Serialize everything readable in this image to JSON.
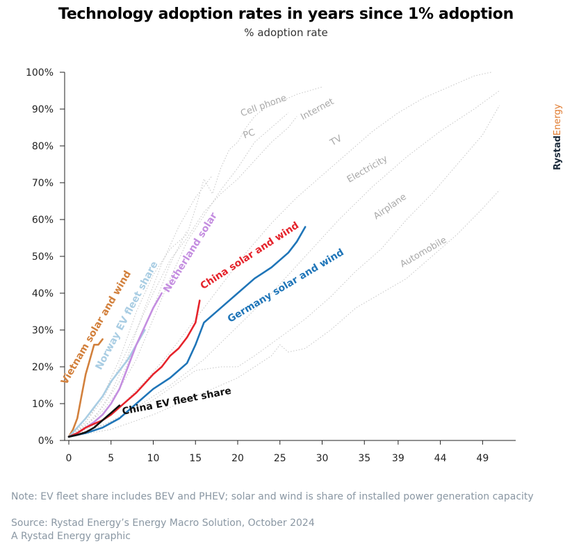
{
  "header": {
    "title": "Technology adoption rates in years since 1% adoption",
    "subtitle": "% adoption rate"
  },
  "brand": {
    "part1": "Rystad",
    "part2": "Energy"
  },
  "footer": {
    "note": "Note: EV fleet share includes BEV and PHEV; solar and wind is share of installed power generation capacity",
    "source": "Source: Rystad Energy’s Energy Macro Solution, October 2024",
    "credit": "A Rystad Energy graphic"
  },
  "colors": {
    "reference": "#c4c4c4",
    "vietnam": "#d2803c",
    "norway": "#a9cde3",
    "netherland": "#c48ee0",
    "china_solar": "#e5232b",
    "germany": "#1f75b8",
    "china_ev": "#111111"
  },
  "chart_data": {
    "type": "line",
    "title": "Technology adoption rates in years since 1% adoption",
    "subtitle": "% adoption rate",
    "xlim": [
      0,
      52
    ],
    "ylim": [
      0,
      100
    ],
    "x_ticks": [
      0,
      5,
      10,
      15,
      20,
      25,
      30,
      35,
      39,
      44,
      49
    ],
    "x_tick_labels": [
      "0",
      "5",
      "10",
      "15",
      "20",
      "25",
      "30",
      "35",
      "39",
      "44",
      "49"
    ],
    "y_ticks": [
      0,
      10,
      20,
      30,
      40,
      50,
      60,
      70,
      80,
      90,
      100
    ],
    "y_tick_labels": [
      "0%",
      "10%",
      "20%",
      "30%",
      "40%",
      "50%",
      "60%",
      "70%",
      "80%",
      "90%",
      "100%"
    ],
    "grid": "none",
    "reference_series": [
      {
        "name": "Cell phone",
        "x": [
          0,
          2,
          4,
          6,
          8,
          10,
          12,
          14,
          15,
          16,
          17,
          18,
          19,
          20,
          21,
          22,
          23,
          25,
          27,
          30
        ],
        "y": [
          1,
          5,
          12,
          22,
          35,
          45,
          52,
          56,
          63,
          71,
          67,
          74,
          79,
          81,
          85,
          88,
          90,
          92,
          94,
          96
        ]
      },
      {
        "name": "PC",
        "x": [
          0,
          2,
          4,
          6,
          8,
          10,
          12,
          14,
          16,
          18,
          20,
          22,
          24,
          26
        ],
        "y": [
          1,
          4,
          8,
          14,
          22,
          33,
          44,
          54,
          61,
          68,
          74,
          81,
          85,
          89
        ]
      },
      {
        "name": "Internet",
        "x": [
          0,
          2,
          4,
          6,
          8,
          10,
          12,
          14,
          16,
          18,
          20,
          22,
          24,
          26,
          27
        ],
        "y": [
          1,
          5,
          11,
          20,
          30,
          40,
          49,
          55,
          62,
          67,
          71,
          76,
          81,
          85,
          88
        ]
      },
      {
        "name": "TV",
        "x": [
          0,
          3,
          6,
          9,
          12,
          15,
          18,
          21,
          24,
          27,
          30,
          33,
          36,
          39,
          42,
          45,
          48,
          50
        ],
        "y": [
          1,
          4,
          9,
          16,
          24,
          33,
          42,
          51,
          59,
          66,
          72,
          78,
          84,
          89,
          93,
          96,
          99,
          100
        ]
      },
      {
        "name": "Electricity",
        "x": [
          0,
          4,
          8,
          12,
          16,
          20,
          24,
          28,
          32,
          36,
          40,
          44,
          48,
          51
        ],
        "y": [
          1,
          4,
          9,
          15,
          22,
          31,
          40,
          50,
          60,
          69,
          77,
          84,
          90,
          95
        ]
      },
      {
        "name": "Airplane",
        "x": [
          0,
          5,
          10,
          15,
          18,
          20,
          22,
          25,
          28,
          31,
          34,
          37,
          40,
          43,
          46,
          49,
          51
        ],
        "y": [
          1,
          5,
          11,
          19,
          20,
          20,
          23,
          28,
          33,
          39,
          46,
          52,
          60,
          67,
          75,
          83,
          91
        ]
      },
      {
        "name": "Automobile",
        "x": [
          0,
          5,
          10,
          15,
          20,
          24,
          25,
          26,
          28,
          31,
          34,
          37,
          40,
          43,
          46,
          49,
          51
        ],
        "y": [
          1,
          3,
          7,
          12,
          17,
          23,
          26,
          24,
          25,
          30,
          36,
          40,
          44,
          50,
          56,
          63,
          68
        ]
      },
      {
        "name": "",
        "x": [
          0,
          3,
          5,
          7,
          9,
          11,
          13,
          15,
          17
        ],
        "y": [
          1,
          6,
          13,
          23,
          36,
          48,
          58,
          66,
          72
        ]
      },
      {
        "name": "",
        "x": [
          0,
          2,
          4,
          6,
          8,
          10,
          12,
          14
        ],
        "y": [
          1,
          4,
          9,
          16,
          26,
          36,
          48,
          57
        ]
      }
    ],
    "series": [
      {
        "name": "Vietnam solar and wind",
        "color": "#d2803c",
        "x": [
          0,
          0.5,
          1,
          1.5,
          2,
          2.5,
          3,
          3.5,
          4
        ],
        "y": [
          1,
          3,
          6,
          12,
          18,
          22,
          26,
          26,
          27.5
        ]
      },
      {
        "name": "Norway EV fleet share",
        "color": "#a9cde3",
        "x": [
          0,
          1,
          2,
          3,
          4,
          5,
          6,
          7,
          8,
          9
        ],
        "y": [
          1,
          3.5,
          6,
          9,
          12,
          16,
          19,
          22,
          26,
          30
        ]
      },
      {
        "name": "Netherland solar",
        "color": "#c48ee0",
        "x": [
          0,
          1,
          2,
          3,
          4,
          5,
          6,
          7,
          8,
          9,
          10,
          11
        ],
        "y": [
          1,
          2,
          3.5,
          5,
          7,
          10,
          14,
          20,
          26,
          31,
          36,
          40
        ]
      },
      {
        "name": "China solar and wind",
        "color": "#e5232b",
        "x": [
          0,
          1,
          2,
          3,
          4,
          5,
          6,
          7,
          8,
          9,
          10,
          11,
          12,
          13,
          14,
          15,
          15.5
        ],
        "y": [
          1,
          2,
          3.5,
          4.5,
          5.5,
          7,
          9,
          11,
          13,
          15.5,
          18,
          20,
          23,
          25,
          28,
          32,
          38
        ]
      },
      {
        "name": "Germany solar and wind",
        "color": "#1f75b8",
        "x": [
          0,
          2,
          4,
          6,
          8,
          10,
          12,
          14,
          15,
          16,
          18,
          20,
          22,
          24,
          26,
          27,
          28
        ],
        "y": [
          1,
          2,
          3.5,
          6,
          10,
          14,
          17,
          21,
          26,
          32,
          36,
          40,
          44,
          47,
          51,
          54,
          58
        ]
      },
      {
        "name": "China EV fleet share",
        "color": "#111111",
        "x": [
          0,
          1,
          2,
          3,
          4,
          5,
          6
        ],
        "y": [
          1,
          1.5,
          2.2,
          3.5,
          5.5,
          7.5,
          9.5
        ]
      }
    ],
    "annotations": [
      {
        "text": "Cell phone",
        "x": 20.5,
        "y": 88,
        "rotate": -20,
        "style": "grey"
      },
      {
        "text": "PC",
        "x": 20.8,
        "y": 82,
        "rotate": -20,
        "style": "grey"
      },
      {
        "text": "Internet",
        "x": 27.7,
        "y": 87,
        "rotate": -28,
        "style": "grey"
      },
      {
        "text": "TV",
        "x": 31.2,
        "y": 80,
        "rotate": -30,
        "style": "grey"
      },
      {
        "text": "Electricity",
        "x": 33.2,
        "y": 70,
        "rotate": -30,
        "style": "grey"
      },
      {
        "text": "Airplane",
        "x": 36.4,
        "y": 60,
        "rotate": -35,
        "style": "grey"
      },
      {
        "text": "Automobile",
        "x": 39.5,
        "y": 47,
        "rotate": -30,
        "style": "grey"
      },
      {
        "text": "Vietnam solar and wind",
        "x": -0.3,
        "y": 15,
        "rotate": -60,
        "style": "series",
        "series": 0
      },
      {
        "text": "Norway EV fleet share",
        "x": 3.8,
        "y": 19,
        "rotate": -62,
        "style": "series",
        "series": 1
      },
      {
        "text": "Netherland solar",
        "x": 11.8,
        "y": 40,
        "rotate": -58,
        "style": "series",
        "series": 2
      },
      {
        "text": "China solar and wind",
        "x": 15.9,
        "y": 41,
        "rotate": -33,
        "style": "series",
        "series": 3
      },
      {
        "text": "Germany solar and wind",
        "x": 19.1,
        "y": 32,
        "rotate": -31,
        "style": "series",
        "series": 4
      },
      {
        "text": "China EV fleet share",
        "x": 6.4,
        "y": 7,
        "rotate": -11,
        "style": "series",
        "series": 5
      }
    ]
  }
}
